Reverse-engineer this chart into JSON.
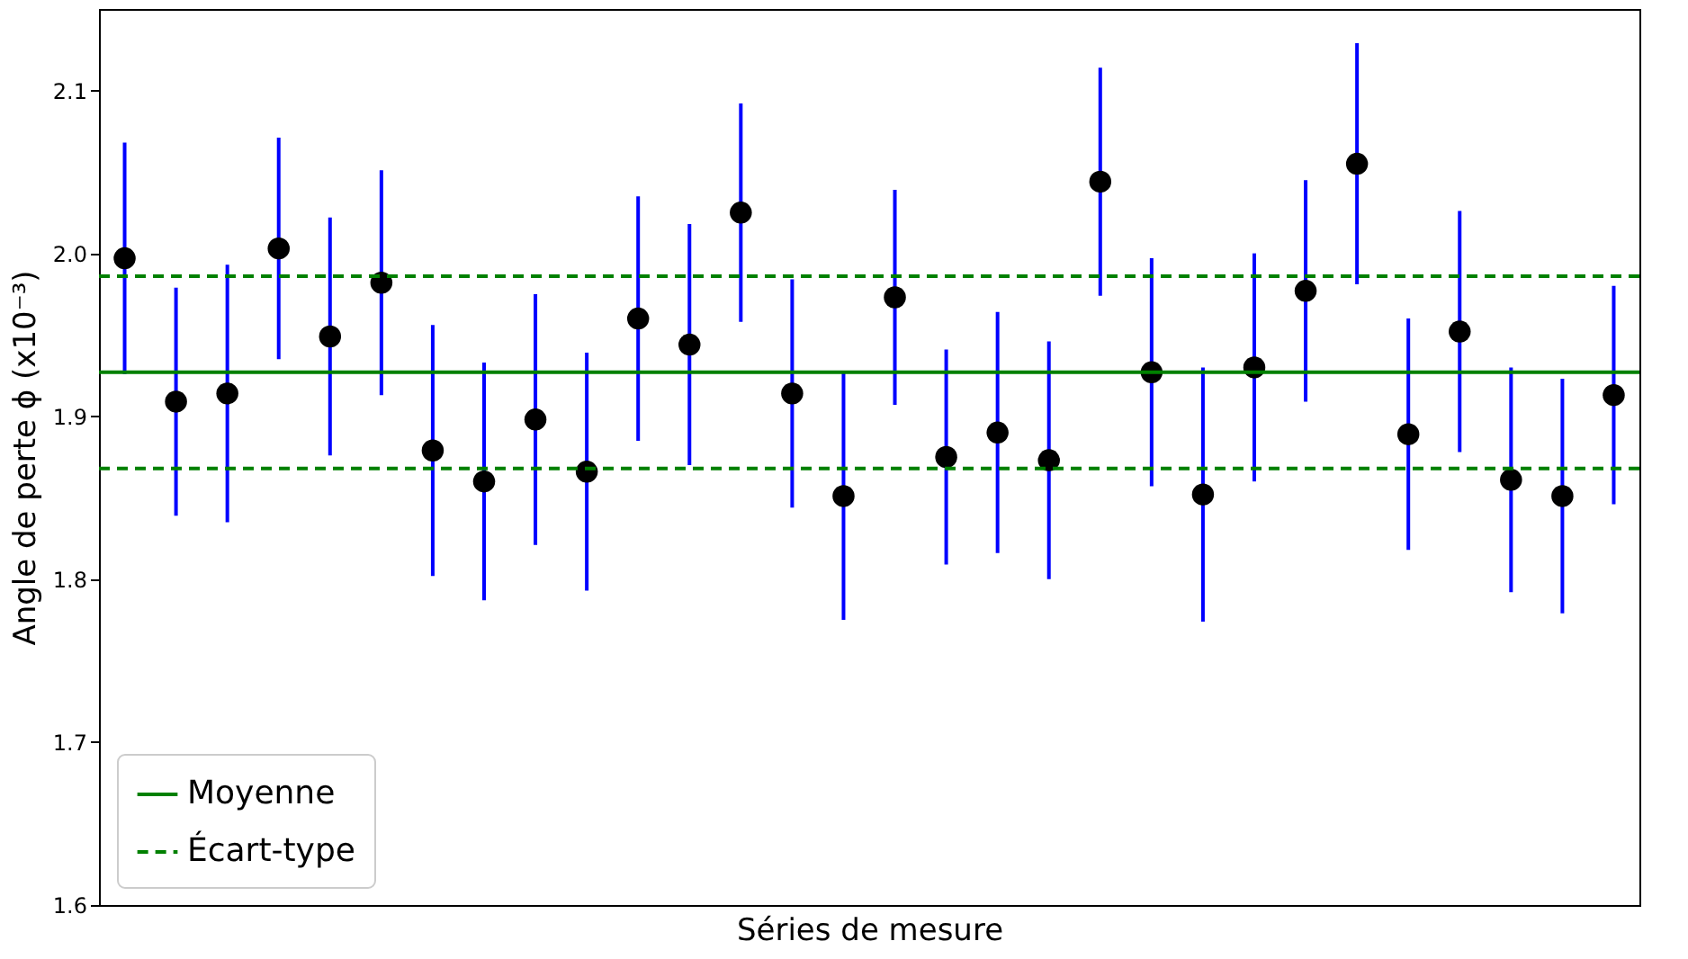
{
  "chart_data": {
    "type": "scatter",
    "xlabel": "Séries de mesure",
    "ylabel": "Angle de perte ϕ (x10⁻³)",
    "categories": [
      null,
      null,
      null,
      null,
      null,
      null,
      null,
      null,
      null,
      null,
      null,
      null,
      null,
      null,
      null,
      null,
      null,
      null,
      null,
      null,
      null,
      null,
      null,
      null,
      null,
      null,
      null,
      null,
      null,
      null
    ],
    "series": [
      {
        "color": "#000000",
        "values": [
          1.997,
          1.909,
          1.914,
          2.003,
          1.949,
          1.982,
          1.879,
          1.86,
          1.898,
          1.866,
          1.96,
          1.944,
          2.025,
          1.914,
          1.851,
          1.973,
          1.875,
          1.89,
          1.873,
          2.044,
          1.927,
          1.852,
          1.93,
          1.977,
          2.055,
          1.889,
          1.952,
          1.861,
          1.851,
          1.913
        ],
        "errors": [
          0.071,
          0.07,
          0.079,
          0.068,
          0.073,
          0.069,
          0.077,
          0.073,
          0.077,
          0.073,
          0.075,
          0.074,
          0.067,
          0.07,
          0.076,
          0.066,
          0.066,
          0.074,
          0.073,
          0.07,
          0.07,
          0.078,
          0.07,
          0.068,
          0.074,
          0.071,
          0.074,
          0.069,
          0.072,
          0.067
        ]
      }
    ],
    "ref_lines": [
      {
        "axis": "y",
        "value": 1.927,
        "label": "Moyenne",
        "color": "#008000",
        "line_style": "solid"
      },
      {
        "axis": "y",
        "value": 1.986,
        "label": "Écart-type",
        "color": "#008000",
        "line_style": "dashed"
      },
      {
        "axis": "y",
        "value": 1.868,
        "color": "#008000",
        "line_style": "dashed"
      }
    ],
    "ylim": [
      1.6,
      2.15
    ],
    "yticks": [
      1.6,
      1.7,
      1.8,
      1.9,
      {
        "value": 2,
        "label": "2.0"
      },
      2.1
    ],
    "marker": "circle",
    "legend": "bottom left",
    "grid": false
  }
}
